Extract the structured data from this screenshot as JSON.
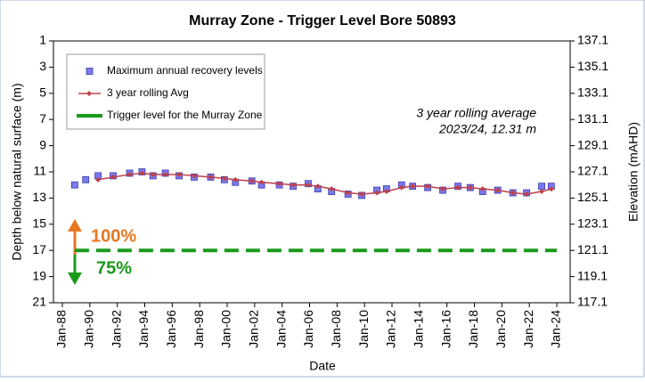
{
  "chart_data": {
    "type": "scatter",
    "title": "Murray Zone - Trigger Level Bore 50893",
    "x_label": "Date",
    "y_label": "Depth below natural surface (m)",
    "y2_label": "Elevation (mAHD)",
    "annotation_lines": [
      "3 year rolling average",
      "2023/24, 12.31 m"
    ],
    "zone_labels": [
      "100%",
      "75%"
    ],
    "xlim": [
      1988,
      2024
    ],
    "xticks": [
      {
        "value": 1988,
        "label": "Jan-88"
      },
      {
        "value": 1990,
        "label": "Jan-90"
      },
      {
        "value": 1992,
        "label": "Jan-92"
      },
      {
        "value": 1994,
        "label": "Jan-94"
      },
      {
        "value": 1996,
        "label": "Jan-96"
      },
      {
        "value": 1998,
        "label": "Jan-98"
      },
      {
        "value": 2000,
        "label": "Jan-00"
      },
      {
        "value": 2002,
        "label": "Jan-02"
      },
      {
        "value": 2004,
        "label": "Jan-04"
      },
      {
        "value": 2006,
        "label": "Jan-06"
      },
      {
        "value": 2008,
        "label": "Jan-08"
      },
      {
        "value": 2010,
        "label": "Jan-10"
      },
      {
        "value": 2012,
        "label": "Jan-12"
      },
      {
        "value": 2014,
        "label": "Jan-14"
      },
      {
        "value": 2016,
        "label": "Jan-16"
      },
      {
        "value": 2018,
        "label": "Jan-18"
      },
      {
        "value": 2020,
        "label": "Jan-20"
      },
      {
        "value": 2022,
        "label": "Jan-22"
      },
      {
        "value": 2024,
        "label": "Jan-24"
      }
    ],
    "ylim": [
      1,
      21
    ],
    "y_inverted": true,
    "yticks": [
      1,
      3,
      5,
      7,
      9,
      11,
      13,
      15,
      17,
      19,
      21
    ],
    "y2lim": [
      137.1,
      117.1
    ],
    "y2ticks": [
      137.1,
      135.1,
      133.1,
      131.1,
      129.1,
      127.1,
      125.1,
      123.1,
      121.1,
      119.1,
      117.1
    ],
    "grid": false,
    "legend": "upper left",
    "series": [
      {
        "name": "Maximum annual recovery levels",
        "kind": "markers",
        "color": "#7b7bf0",
        "x": [
          1988.9,
          1989.7,
          1990.6,
          1991.7,
          1992.9,
          1993.8,
          1994.6,
          1995.5,
          1996.5,
          1997.6,
          1998.8,
          1999.8,
          2000.6,
          2001.8,
          2002.5,
          2003.8,
          2004.8,
          2005.9,
          2006.6,
          2007.6,
          2008.8,
          2009.8,
          2010.9,
          2011.6,
          2012.7,
          2013.5,
          2014.6,
          2015.7,
          2016.8,
          2017.7,
          2018.6,
          2019.7,
          2020.8,
          2021.8,
          2022.9,
          2023.6
        ],
        "values": [
          12.0,
          11.6,
          11.3,
          11.3,
          11.1,
          11.0,
          11.3,
          11.1,
          11.3,
          11.4,
          11.4,
          11.6,
          11.8,
          11.7,
          12.0,
          12.0,
          12.1,
          11.9,
          12.3,
          12.5,
          12.7,
          12.8,
          12.4,
          12.3,
          12.0,
          12.1,
          12.2,
          12.4,
          12.1,
          12.2,
          12.5,
          12.4,
          12.6,
          12.6,
          12.1,
          12.1
        ]
      },
      {
        "name": "3 year rolling Avg",
        "kind": "line-markers",
        "color": "#c0404a",
        "x": [
          1990.6,
          1991.7,
          1992.9,
          1993.8,
          1994.6,
          1995.5,
          1996.5,
          1997.6,
          1998.8,
          1999.8,
          2000.6,
          2001.8,
          2002.5,
          2003.8,
          2004.8,
          2005.9,
          2006.6,
          2007.6,
          2008.8,
          2009.8,
          2010.9,
          2011.6,
          2012.7,
          2013.5,
          2014.6,
          2015.7,
          2016.8,
          2017.7,
          2018.6,
          2019.7,
          2020.8,
          2021.8,
          2022.9,
          2023.6
        ],
        "values": [
          11.6,
          11.4,
          11.2,
          11.1,
          11.2,
          11.2,
          11.2,
          11.3,
          11.4,
          11.5,
          11.6,
          11.7,
          11.8,
          11.9,
          12.0,
          12.0,
          12.1,
          12.3,
          12.6,
          12.7,
          12.6,
          12.5,
          12.2,
          12.1,
          12.1,
          12.3,
          12.2,
          12.2,
          12.3,
          12.4,
          12.6,
          12.7,
          12.5,
          12.31
        ]
      },
      {
        "name": "Trigger level for the Murray Zone",
        "kind": "dashed",
        "color": "#1a9a1a",
        "x": [
          1988.9,
          2024
        ],
        "values": [
          17,
          17
        ]
      }
    ]
  }
}
